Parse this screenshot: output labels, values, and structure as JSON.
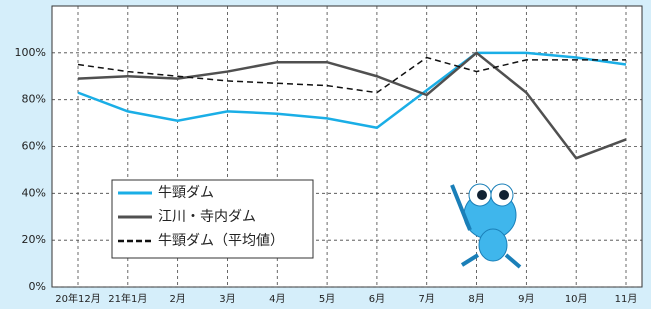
{
  "chart_data": {
    "type": "line",
    "categories": [
      "20年12月",
      "21年1月",
      "2月",
      "3月",
      "4月",
      "5月",
      "6月",
      "7月",
      "8月",
      "9月",
      "10月",
      "11月"
    ],
    "series": [
      {
        "name": "牛頸ダム",
        "color": "#1aaee6",
        "dash": false,
        "values": [
          83,
          75,
          71,
          75,
          74,
          72,
          68,
          84,
          100,
          100,
          98,
          95
        ]
      },
      {
        "name": "江川・寺内ダム",
        "color": "#505050",
        "dash": false,
        "values": [
          89,
          90,
          89,
          92,
          96,
          96,
          90,
          82,
          100,
          83,
          55,
          63
        ]
      },
      {
        "name": "牛頸ダム（平均値）",
        "color": "#111111",
        "dash": true,
        "values": [
          95,
          92,
          90,
          88,
          87,
          86,
          83,
          98,
          92,
          97,
          97,
          97
        ]
      }
    ],
    "ylim": [
      0,
      120
    ],
    "yticks": [
      {
        "value": 0,
        "label": "0%"
      },
      {
        "value": 20,
        "label": "20%"
      },
      {
        "value": 40,
        "label": "40%"
      },
      {
        "value": 60,
        "label": "60%"
      },
      {
        "value": 80,
        "label": "80%"
      },
      {
        "value": 100,
        "label": "100%"
      }
    ],
    "grid": true
  }
}
